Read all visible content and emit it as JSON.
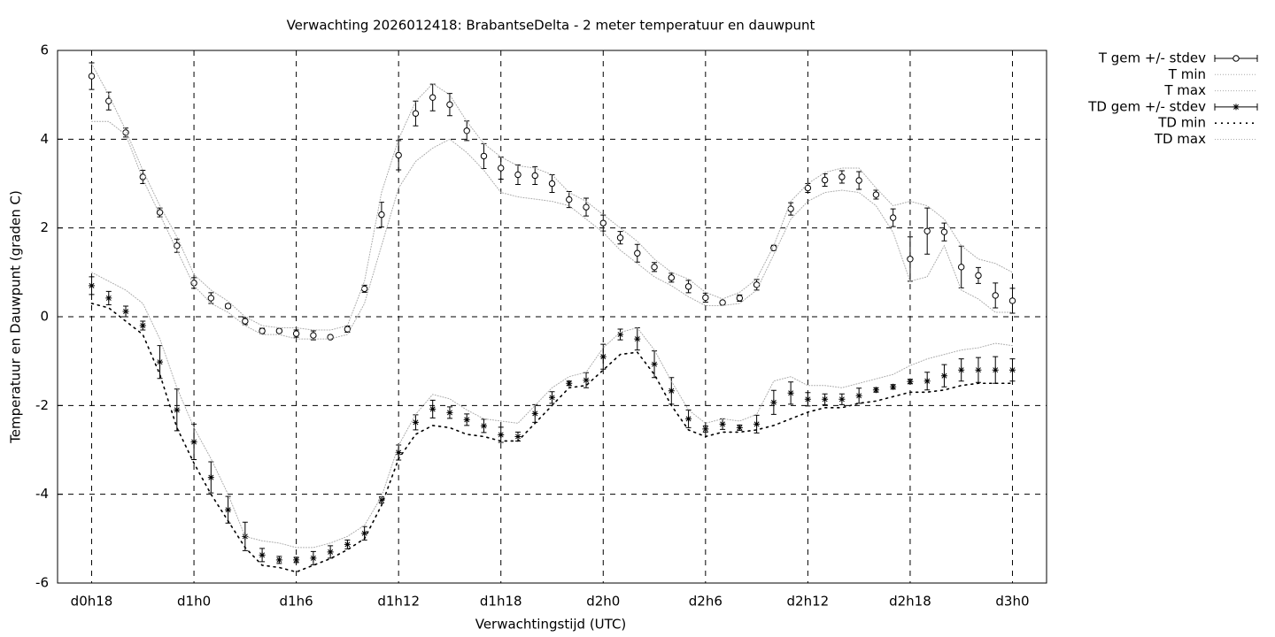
{
  "chart_data": {
    "type": "line",
    "title": "Verwachting 2026012418: BrabantseDelta - 2 meter temperatuur en dauwpunt",
    "x_label": "Verwachtingstijd (UTC)",
    "y_label": "Temperatuur en Dauwpunt (graden C)",
    "categories": [
      "d0h18",
      null,
      null,
      null,
      null,
      null,
      "d1h0",
      null,
      null,
      null,
      null,
      null,
      "d1h6",
      null,
      null,
      null,
      null,
      null,
      "d1h12",
      null,
      null,
      null,
      null,
      null,
      "d1h18",
      null,
      null,
      null,
      null,
      null,
      "d2h0",
      null,
      null,
      null,
      null,
      null,
      "d2h6",
      null,
      null,
      null,
      null,
      null,
      "d2h12",
      null,
      null,
      null,
      null,
      null,
      "d2h18",
      null,
      null,
      null,
      null,
      null,
      "d3h0"
    ],
    "ylim": [
      -6,
      6
    ],
    "yticks": [
      -6,
      -4,
      -2,
      0,
      2,
      4,
      6
    ],
    "grid": true,
    "legend": "outside-right",
    "series": [
      {
        "name": "T gem +/- stdev",
        "color": "#000000",
        "marker": "circle",
        "style": "errorbars",
        "values": [
          5.42,
          4.86,
          4.15,
          3.15,
          2.35,
          1.6,
          0.76,
          0.42,
          0.24,
          -0.1,
          -0.32,
          -0.32,
          -0.38,
          -0.42,
          -0.46,
          -0.28,
          0.63,
          2.3,
          3.64,
          4.58,
          4.94,
          4.78,
          4.19,
          3.62,
          3.35,
          3.2,
          3.18,
          3.0,
          2.64,
          2.47,
          2.11,
          1.78,
          1.43,
          1.12,
          0.88,
          0.68,
          0.43,
          0.32,
          0.42,
          0.72,
          1.55,
          2.43,
          2.9,
          3.08,
          3.15,
          3.07,
          2.75,
          2.23,
          1.3,
          1.93,
          1.91,
          1.12,
          0.93,
          0.48,
          0.36
        ],
        "errors": [
          0.3,
          0.2,
          0.1,
          0.15,
          0.1,
          0.15,
          0.12,
          0.12,
          0.05,
          0.08,
          0.06,
          0.04,
          0.08,
          0.1,
          0.04,
          0.07,
          0.08,
          0.28,
          0.33,
          0.28,
          0.3,
          0.25,
          0.22,
          0.28,
          0.25,
          0.22,
          0.2,
          0.2,
          0.18,
          0.2,
          0.18,
          0.14,
          0.2,
          0.1,
          0.1,
          0.14,
          0.1,
          0.03,
          0.07,
          0.12,
          0.06,
          0.14,
          0.1,
          0.14,
          0.14,
          0.2,
          0.1,
          0.2,
          0.5,
          0.52,
          0.2,
          0.47,
          0.18,
          0.28,
          0.28
        ]
      },
      {
        "name": "T min",
        "color": "#aaaaaa",
        "style": "fine-dots",
        "values": [
          4.4,
          4.4,
          4.1,
          3.1,
          2.3,
          1.5,
          0.7,
          0.3,
          0.1,
          -0.2,
          -0.4,
          -0.4,
          -0.5,
          -0.5,
          -0.5,
          -0.4,
          0.3,
          1.6,
          2.9,
          3.5,
          3.8,
          4.0,
          3.7,
          3.3,
          2.8,
          2.7,
          2.65,
          2.6,
          2.5,
          2.2,
          1.9,
          1.5,
          1.2,
          0.9,
          0.7,
          0.45,
          0.25,
          0.25,
          0.3,
          0.6,
          1.4,
          2.2,
          2.6,
          2.8,
          2.85,
          2.8,
          2.5,
          1.9,
          0.8,
          0.9,
          1.6,
          0.6,
          0.4,
          0.1,
          0.1
        ]
      },
      {
        "name": "T max",
        "color": "#aaaaaa",
        "style": "fine-dots",
        "values": [
          5.7,
          5.0,
          4.2,
          3.3,
          2.5,
          1.8,
          0.95,
          0.6,
          0.35,
          0,
          -0.2,
          -0.25,
          -0.25,
          -0.3,
          -0.3,
          -0.2,
          0.8,
          2.8,
          4.0,
          4.85,
          5.25,
          5.0,
          4.4,
          3.9,
          3.6,
          3.4,
          3.35,
          3.2,
          2.8,
          2.6,
          2.3,
          2.0,
          1.7,
          1.3,
          1.0,
          0.85,
          0.55,
          0.4,
          0.55,
          0.85,
          1.6,
          2.6,
          3.0,
          3.25,
          3.35,
          3.35,
          2.9,
          2.5,
          2.6,
          2.5,
          2.2,
          1.6,
          1.3,
          1.2,
          1.0
        ]
      },
      {
        "name": "TD gem +/- stdev",
        "color": "#000000",
        "marker": "star",
        "style": "errorbars",
        "values": [
          0.7,
          0.42,
          0.12,
          -0.2,
          -1.02,
          -2.1,
          -2.82,
          -3.62,
          -4.35,
          -4.95,
          -5.37,
          -5.48,
          -5.48,
          -5.44,
          -5.3,
          -5.13,
          -4.88,
          -4.13,
          -3.06,
          -2.38,
          -2.08,
          -2.16,
          -2.32,
          -2.46,
          -2.66,
          -2.7,
          -2.18,
          -1.82,
          -1.5,
          -1.43,
          -0.9,
          -0.4,
          -0.5,
          -1.07,
          -1.67,
          -2.3,
          -2.53,
          -2.42,
          -2.5,
          -2.42,
          -1.93,
          -1.72,
          -1.86,
          -1.86,
          -1.86,
          -1.78,
          -1.65,
          -1.58,
          -1.46,
          -1.45,
          -1.33,
          -1.2,
          -1.2,
          -1.2,
          -1.2
        ],
        "errors": [
          0.2,
          0.15,
          0.12,
          0.1,
          0.37,
          0.47,
          0.4,
          0.35,
          0.3,
          0.32,
          0.15,
          0.08,
          0.06,
          0.15,
          0.14,
          0.1,
          0.15,
          0.07,
          0.17,
          0.17,
          0.2,
          0.13,
          0.13,
          0.15,
          0.17,
          0.1,
          0.2,
          0.13,
          0.05,
          0.17,
          0.28,
          0.12,
          0.25,
          0.3,
          0.3,
          0.2,
          0.07,
          0.12,
          0.06,
          0.2,
          0.27,
          0.25,
          0.15,
          0.12,
          0.12,
          0.17,
          0.05,
          0.05,
          0.05,
          0.2,
          0.25,
          0.25,
          0.28,
          0.3,
          0.25
        ]
      },
      {
        "name": "TD min",
        "color": "#000000",
        "style": "coarse-dots",
        "values": [
          0.3,
          0.2,
          -0.1,
          -0.4,
          -1.3,
          -2.5,
          -3.3,
          -4.0,
          -4.6,
          -5.2,
          -5.6,
          -5.65,
          -5.75,
          -5.6,
          -5.45,
          -5.25,
          -5.0,
          -4.25,
          -3.2,
          -2.65,
          -2.45,
          -2.5,
          -2.65,
          -2.7,
          -2.8,
          -2.8,
          -2.4,
          -2.0,
          -1.6,
          -1.55,
          -1.2,
          -0.85,
          -0.8,
          -1.3,
          -2.0,
          -2.55,
          -2.7,
          -2.6,
          -2.6,
          -2.55,
          -2.45,
          -2.3,
          -2.15,
          -2.05,
          -2.05,
          -1.95,
          -1.9,
          -1.8,
          -1.7,
          -1.7,
          -1.65,
          -1.55,
          -1.5,
          -1.5,
          -1.5
        ]
      },
      {
        "name": "TD max",
        "color": "#aaaaaa",
        "style": "fine-dots",
        "values": [
          1.0,
          0.8,
          0.6,
          0.3,
          -0.5,
          -1.6,
          -2.5,
          -3.2,
          -4.0,
          -4.95,
          -5.05,
          -5.1,
          -5.2,
          -5.2,
          -5.1,
          -4.95,
          -4.7,
          -4.05,
          -2.9,
          -2.2,
          -1.75,
          -1.85,
          -2.1,
          -2.3,
          -2.35,
          -2.4,
          -2.0,
          -1.6,
          -1.35,
          -1.25,
          -0.7,
          -0.35,
          -0.25,
          -0.75,
          -1.45,
          -2.1,
          -2.4,
          -2.3,
          -2.35,
          -2.2,
          -1.45,
          -1.35,
          -1.55,
          -1.55,
          -1.6,
          -1.5,
          -1.4,
          -1.3,
          -1.1,
          -0.95,
          -0.85,
          -0.75,
          -0.7,
          -0.6,
          -0.65
        ]
      }
    ]
  }
}
